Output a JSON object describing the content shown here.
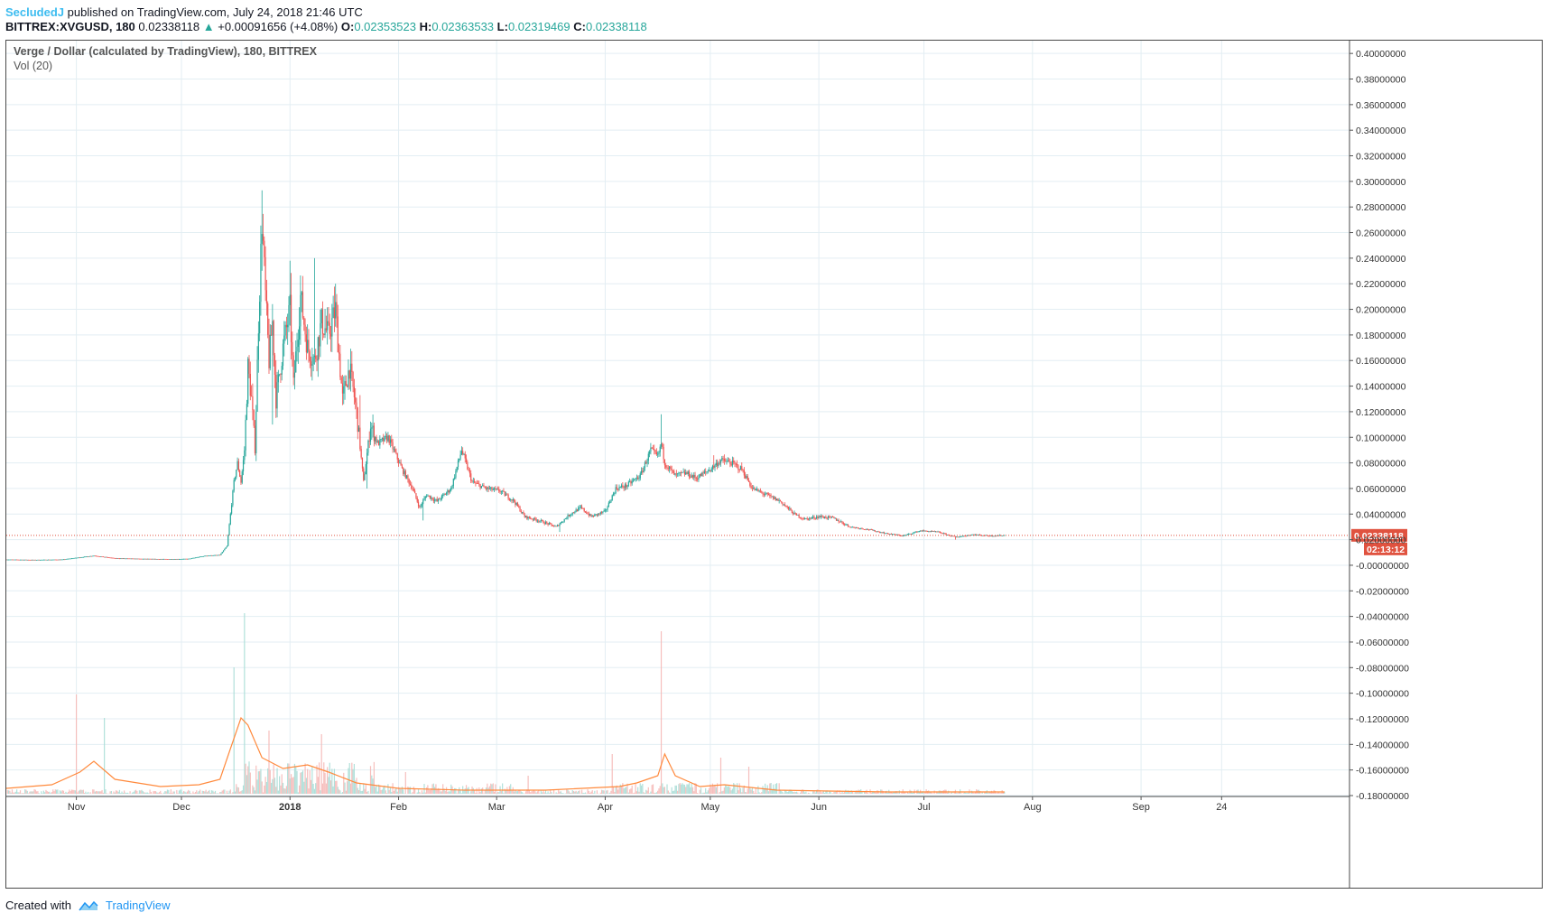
{
  "header": {
    "author": "SecludedJ",
    "published": "published on TradingView.com, July 24, 2018 21:46 UTC",
    "symbol": "BITTREX:XVGUSD, 180",
    "last": "0.02338118",
    "change": "+0.00091656 (+4.08%)",
    "open_label": "O:",
    "open": "0.02353523",
    "high_label": "H:",
    "high": "0.02363533",
    "low_label": "L:",
    "low": "0.02319469",
    "close_label": "C:",
    "close": "0.02338118"
  },
  "legend": {
    "title": "Verge / Dollar (calculated by TradingView), 180, BITTREX",
    "indicator": "Vol (20)"
  },
  "footer": {
    "created": "Created with",
    "brand": "TradingView"
  },
  "colors": {
    "up": "#26a69a",
    "down": "#ef5350",
    "volume_ma": "#ff8a3d",
    "grid": "#e3eef3",
    "price_tag": "#e0523f"
  },
  "chart_data": {
    "type": "candlestick",
    "title": "Verge / Dollar (calculated by TradingView), 180, BITTREX",
    "ylim": [
      -0.18,
      0.41
    ],
    "y_ticks": [
      0.4,
      0.38,
      0.36,
      0.34,
      0.32,
      0.3,
      0.28,
      0.26,
      0.24,
      0.22,
      0.2,
      0.18,
      0.16,
      0.14,
      0.12,
      0.1,
      0.08,
      0.06,
      0.04,
      0.02,
      0.0,
      -0.02,
      -0.04,
      -0.06,
      -0.08,
      -0.1,
      -0.12,
      -0.14,
      -0.16,
      -0.18
    ],
    "y_tick_labels": [
      "0.40000000",
      "0.38000000",
      "0.36000000",
      "0.34000000",
      "0.32000000",
      "0.30000000",
      "0.28000000",
      "0.26000000",
      "0.24000000",
      "0.22000000",
      "0.20000000",
      "0.18000000",
      "0.16000000",
      "0.14000000",
      "0.12000000",
      "0.10000000",
      "0.08000000",
      "0.06000000",
      "0.04000000",
      "0.02000000",
      "-0.00000000",
      "-0.02000000",
      "-0.04000000",
      "-0.06000000",
      "-0.08000000",
      "-0.10000000",
      "-0.12000000",
      "-0.14000000",
      "-0.16000000",
      "-0.18000000"
    ],
    "x_ticks": [
      {
        "date": "2017-11-01",
        "label": "Nov"
      },
      {
        "date": "2017-12-01",
        "label": "Dec"
      },
      {
        "date": "2018-01-01",
        "label": "2018"
      },
      {
        "date": "2018-02-01",
        "label": "Feb"
      },
      {
        "date": "2018-03-01",
        "label": "Mar"
      },
      {
        "date": "2018-04-01",
        "label": "Apr"
      },
      {
        "date": "2018-05-01",
        "label": "May"
      },
      {
        "date": "2018-06-01",
        "label": "Jun"
      },
      {
        "date": "2018-07-01",
        "label": "Jul"
      },
      {
        "date": "2018-08-01",
        "label": "Aug"
      },
      {
        "date": "2018-09-01",
        "label": "Sep"
      },
      {
        "date": "2018-09-24",
        "label": "24"
      }
    ],
    "x_range": [
      "2017-10-12",
      "2018-10-30"
    ],
    "last_price": 0.02338118,
    "last_price_label": "0.02338118",
    "countdown_label": "02:13:12",
    "price_path": [
      [
        "2017-10-12",
        0.0045
      ],
      [
        "2017-10-20",
        0.0042
      ],
      [
        "2017-10-28",
        0.0045
      ],
      [
        "2017-11-06",
        0.0075
      ],
      [
        "2017-11-12",
        0.0055
      ],
      [
        "2017-11-20",
        0.005
      ],
      [
        "2017-11-28",
        0.0048
      ],
      [
        "2017-12-03",
        0.005
      ],
      [
        "2017-12-08",
        0.0075
      ],
      [
        "2017-12-12",
        0.008
      ],
      [
        "2017-12-14",
        0.015
      ],
      [
        "2017-12-16",
        0.065
      ],
      [
        "2017-12-17",
        0.08
      ],
      [
        "2017-12-18",
        0.065
      ],
      [
        "2017-12-19",
        0.09
      ],
      [
        "2017-12-20",
        0.155
      ],
      [
        "2017-12-21",
        0.13
      ],
      [
        "2017-12-22",
        0.09
      ],
      [
        "2017-12-23",
        0.19
      ],
      [
        "2017-12-24",
        0.27
      ],
      [
        "2017-12-25",
        0.21
      ],
      [
        "2017-12-26",
        0.16
      ],
      [
        "2017-12-27",
        0.19
      ],
      [
        "2017-12-28",
        0.13
      ],
      [
        "2017-12-30",
        0.17
      ],
      [
        "2018-01-01",
        0.2
      ],
      [
        "2018-01-02",
        0.14
      ],
      [
        "2018-01-04",
        0.21
      ],
      [
        "2018-01-06",
        0.17
      ],
      [
        "2018-01-08",
        0.16
      ],
      [
        "2018-01-10",
        0.19
      ],
      [
        "2018-01-12",
        0.18
      ],
      [
        "2018-01-14",
        0.2
      ],
      [
        "2018-01-16",
        0.13
      ],
      [
        "2018-01-18",
        0.155
      ],
      [
        "2018-01-20",
        0.12
      ],
      [
        "2018-01-22",
        0.065
      ],
      [
        "2018-01-24",
        0.11
      ],
      [
        "2018-01-26",
        0.095
      ],
      [
        "2018-01-29",
        0.1
      ],
      [
        "2018-02-02",
        0.075
      ],
      [
        "2018-02-05",
        0.06
      ],
      [
        "2018-02-07",
        0.045
      ],
      [
        "2018-02-09",
        0.055
      ],
      [
        "2018-02-12",
        0.05
      ],
      [
        "2018-02-16",
        0.06
      ],
      [
        "2018-02-19",
        0.09
      ],
      [
        "2018-02-22",
        0.065
      ],
      [
        "2018-02-26",
        0.06
      ],
      [
        "2018-03-02",
        0.058
      ],
      [
        "2018-03-06",
        0.05
      ],
      [
        "2018-03-09",
        0.038
      ],
      [
        "2018-03-13",
        0.035
      ],
      [
        "2018-03-18",
        0.03
      ],
      [
        "2018-03-22",
        0.04
      ],
      [
        "2018-03-25",
        0.045
      ],
      [
        "2018-03-28",
        0.038
      ],
      [
        "2018-04-01",
        0.042
      ],
      [
        "2018-04-04",
        0.06
      ],
      [
        "2018-04-07",
        0.062
      ],
      [
        "2018-04-11",
        0.07
      ],
      [
        "2018-04-14",
        0.09
      ],
      [
        "2018-04-16",
        0.085
      ],
      [
        "2018-04-17",
        0.095
      ],
      [
        "2018-04-18",
        0.08
      ],
      [
        "2018-04-21",
        0.07
      ],
      [
        "2018-04-24",
        0.072
      ],
      [
        "2018-04-27",
        0.068
      ],
      [
        "2018-05-01",
        0.075
      ],
      [
        "2018-05-04",
        0.082
      ],
      [
        "2018-05-07",
        0.08
      ],
      [
        "2018-05-10",
        0.075
      ],
      [
        "2018-05-13",
        0.06
      ],
      [
        "2018-05-17",
        0.055
      ],
      [
        "2018-05-21",
        0.05
      ],
      [
        "2018-05-25",
        0.04
      ],
      [
        "2018-05-28",
        0.036
      ],
      [
        "2018-06-01",
        0.038
      ],
      [
        "2018-06-05",
        0.037
      ],
      [
        "2018-06-10",
        0.03
      ],
      [
        "2018-06-15",
        0.028
      ],
      [
        "2018-06-20",
        0.025
      ],
      [
        "2018-06-25",
        0.023
      ],
      [
        "2018-06-30",
        0.027
      ],
      [
        "2018-07-05",
        0.026
      ],
      [
        "2018-07-10",
        0.022
      ],
      [
        "2018-07-15",
        0.024
      ],
      [
        "2018-07-20",
        0.023
      ],
      [
        "2018-07-24",
        0.02338
      ]
    ],
    "price_peaks": [
      [
        "2017-12-24",
        0.293
      ],
      [
        "2018-01-01",
        0.238
      ],
      [
        "2018-01-08",
        0.24
      ],
      [
        "2018-01-21",
        0.133
      ],
      [
        "2018-02-19",
        0.093
      ],
      [
        "2018-04-17",
        0.118
      ],
      [
        "2018-05-02",
        0.086
      ]
    ],
    "price_troughs": [
      [
        "2017-12-27",
        0.11
      ],
      [
        "2018-01-23",
        0.06
      ],
      [
        "2018-02-08",
        0.035
      ],
      [
        "2018-03-19",
        0.026
      ],
      [
        "2018-07-10",
        0.02
      ]
    ],
    "volume": {
      "label": "Vol (20)",
      "spikes": [
        [
          "2017-11-01",
          0.55
        ],
        [
          "2017-11-09",
          0.42
        ],
        [
          "2017-12-16",
          0.7
        ],
        [
          "2017-12-19",
          1.0
        ],
        [
          "2017-12-26",
          0.35
        ],
        [
          "2018-01-10",
          0.33
        ],
        [
          "2018-02-03",
          0.12
        ],
        [
          "2018-03-10",
          0.1
        ],
        [
          "2018-04-03",
          0.22
        ],
        [
          "2018-04-17",
          0.9
        ],
        [
          "2018-05-04",
          0.2
        ],
        [
          "2018-05-12",
          0.15
        ]
      ],
      "ma_path": [
        [
          "2017-10-12",
          0.03
        ],
        [
          "2017-10-25",
          0.05
        ],
        [
          "2017-11-02",
          0.12
        ],
        [
          "2017-11-06",
          0.18
        ],
        [
          "2017-11-12",
          0.08
        ],
        [
          "2017-11-25",
          0.04
        ],
        [
          "2017-12-06",
          0.05
        ],
        [
          "2017-12-12",
          0.08
        ],
        [
          "2017-12-15",
          0.25
        ],
        [
          "2017-12-18",
          0.42
        ],
        [
          "2017-12-20",
          0.38
        ],
        [
          "2017-12-24",
          0.2
        ],
        [
          "2017-12-30",
          0.14
        ],
        [
          "2018-01-06",
          0.16
        ],
        [
          "2018-01-12",
          0.12
        ],
        [
          "2018-01-20",
          0.06
        ],
        [
          "2018-02-01",
          0.03
        ],
        [
          "2018-02-20",
          0.02
        ],
        [
          "2018-03-15",
          0.02
        ],
        [
          "2018-04-05",
          0.04
        ],
        [
          "2018-04-10",
          0.06
        ],
        [
          "2018-04-16",
          0.1
        ],
        [
          "2018-04-18",
          0.22
        ],
        [
          "2018-04-21",
          0.1
        ],
        [
          "2018-04-28",
          0.04
        ],
        [
          "2018-05-05",
          0.05
        ],
        [
          "2018-05-20",
          0.02
        ],
        [
          "2018-06-20",
          0.01
        ],
        [
          "2018-07-24",
          0.01
        ]
      ]
    }
  }
}
